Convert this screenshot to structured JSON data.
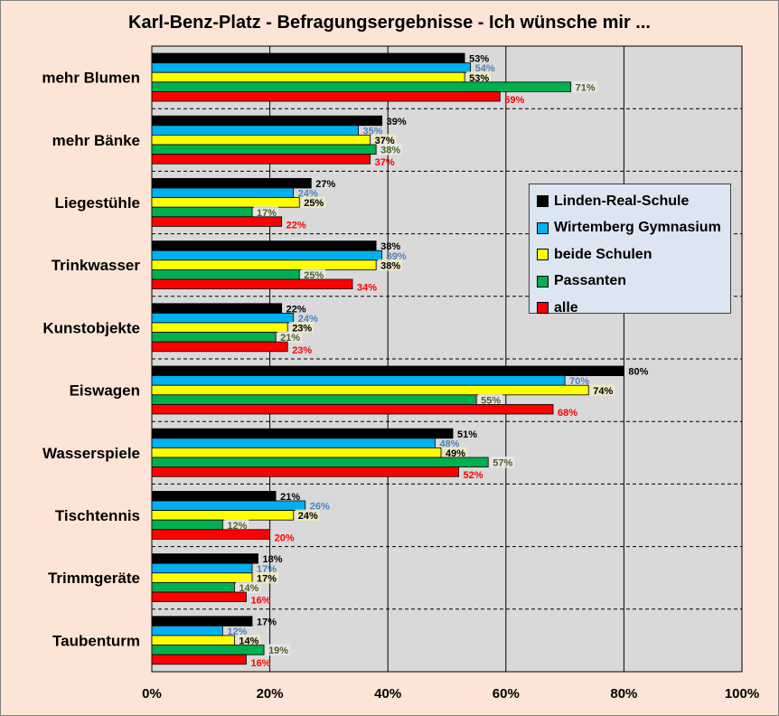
{
  "chart_data": {
    "type": "bar",
    "orientation": "horizontal",
    "title": "Karl-Benz-Platz - Befragungsergebnisse  - Ich wünsche mir ...",
    "xlabel": "",
    "ylabel": "",
    "xlim": [
      0,
      100
    ],
    "x_ticks": [
      "0%",
      "20%",
      "40%",
      "60%",
      "80%",
      "100%"
    ],
    "grid": true,
    "legend_position": "right",
    "categories": [
      "mehr Blumen",
      "mehr Bänke",
      "Liegestühle",
      "Trinkwasser",
      "Kunstobjekte",
      "Eiswagen",
      "Wasserspiele",
      "Tischtennis",
      "Trimmgeräte",
      "Taubenturm"
    ],
    "series": [
      {
        "name": "Linden-Real-Schule",
        "color": "#000000",
        "values": [
          53,
          39,
          27,
          38,
          22,
          80,
          51,
          21,
          18,
          17
        ]
      },
      {
        "name": "Wirtemberg Gymnasium",
        "color": "#00b0f0",
        "values": [
          54,
          35,
          24,
          39,
          24,
          70,
          48,
          26,
          17,
          12
        ]
      },
      {
        "name": "beide Schulen",
        "color": "#ffff00",
        "values": [
          53,
          37,
          25,
          38,
          23,
          74,
          49,
          24,
          17,
          14
        ]
      },
      {
        "name": "Passanten",
        "color": "#00b050",
        "values": [
          71,
          38,
          17,
          25,
          21,
          55,
          57,
          12,
          14,
          19
        ]
      },
      {
        "name": "alle",
        "color": "#ff0000",
        "values": [
          59,
          37,
          22,
          34,
          23,
          68,
          52,
          20,
          16,
          16
        ]
      }
    ]
  }
}
